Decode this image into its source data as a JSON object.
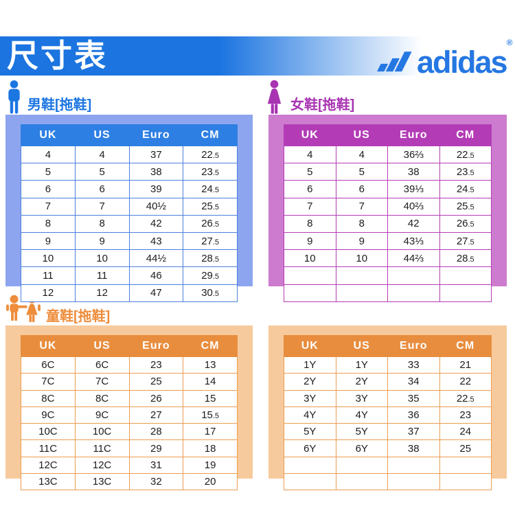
{
  "header": {
    "title": "尺寸表",
    "brand": "adidas",
    "reg": "®"
  },
  "sections": {
    "men": {
      "label": "男鞋[拖鞋]"
    },
    "women": {
      "label": "女鞋[拖鞋]"
    },
    "kids": {
      "label": "童鞋[拖鞋]"
    }
  },
  "colors": {
    "banner_blue": "#1b74e0",
    "logo_blue": "#2577e2",
    "men_accent": "#2e7fe3",
    "men_panel": "#8da5ef",
    "women_accent": "#b33cb6",
    "women_panel": "#cd7bce",
    "kids_accent": "#e88d3e",
    "kids_panel": "#f6ca9c"
  },
  "tables": {
    "men": {
      "headers": [
        "UK",
        "US",
        "Euro",
        "CM"
      ],
      "rows": [
        [
          "4",
          "4",
          "37",
          "22.5"
        ],
        [
          "5",
          "5",
          "38",
          "23.5"
        ],
        [
          "6",
          "6",
          "39",
          "24.5"
        ],
        [
          "7",
          "7",
          "40½",
          "25.5"
        ],
        [
          "8",
          "8",
          "42",
          "26.5"
        ],
        [
          "9",
          "9",
          "43",
          "27.5"
        ],
        [
          "10",
          "10",
          "44½",
          "28.5"
        ],
        [
          "11",
          "11",
          "46",
          "29.5"
        ],
        [
          "12",
          "12",
          "47",
          "30.5"
        ]
      ]
    },
    "women": {
      "headers": [
        "UK",
        "US",
        "Euro",
        "CM"
      ],
      "rows": [
        [
          "4",
          "4",
          "36⅔",
          "22.5"
        ],
        [
          "5",
          "5",
          "38",
          "23.5"
        ],
        [
          "6",
          "6",
          "39⅓",
          "24.5"
        ],
        [
          "7",
          "7",
          "40⅔",
          "25.5"
        ],
        [
          "8",
          "8",
          "42",
          "26.5"
        ],
        [
          "9",
          "9",
          "43⅓",
          "27.5"
        ],
        [
          "10",
          "10",
          "44⅔",
          "28.5"
        ],
        [
          "",
          "",
          "",
          ""
        ],
        [
          "",
          "",
          "",
          ""
        ]
      ]
    },
    "kids_left": {
      "headers": [
        "UK",
        "US",
        "Euro",
        "CM"
      ],
      "rows": [
        [
          "6C",
          "6C",
          "23",
          "13"
        ],
        [
          "7C",
          "7C",
          "25",
          "14"
        ],
        [
          "8C",
          "8C",
          "26",
          "15"
        ],
        [
          "9C",
          "9C",
          "27",
          "15.5"
        ],
        [
          "10C",
          "10C",
          "28",
          "17"
        ],
        [
          "11C",
          "11C",
          "29",
          "18"
        ],
        [
          "12C",
          "12C",
          "31",
          "19"
        ],
        [
          "13C",
          "13C",
          "32",
          "20"
        ]
      ]
    },
    "kids_right": {
      "headers": [
        "UK",
        "US",
        "Euro",
        "CM"
      ],
      "rows": [
        [
          "1Y",
          "1Y",
          "33",
          "21"
        ],
        [
          "2Y",
          "2Y",
          "34",
          "22"
        ],
        [
          "3Y",
          "3Y",
          "35",
          "22.5"
        ],
        [
          "4Y",
          "4Y",
          "36",
          "23"
        ],
        [
          "5Y",
          "5Y",
          "37",
          "24"
        ],
        [
          "6Y",
          "6Y",
          "38",
          "25"
        ],
        [
          "",
          "",
          "",
          ""
        ],
        [
          "",
          "",
          "",
          ""
        ]
      ]
    }
  }
}
